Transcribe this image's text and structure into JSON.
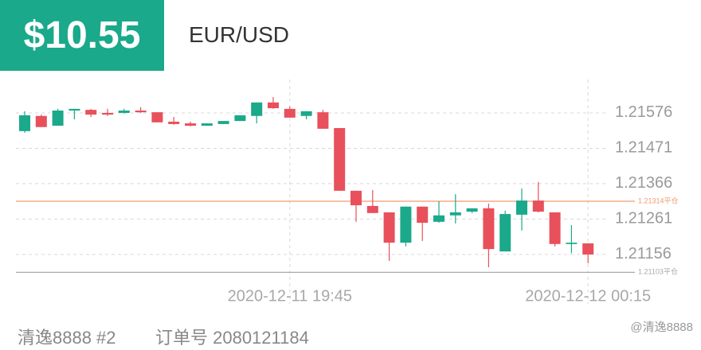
{
  "header": {
    "amount": "$10.55",
    "symbol": "EUR/USD"
  },
  "chart_data": {
    "type": "candlestick",
    "categories": [
      null,
      null,
      null,
      null,
      null,
      null,
      null,
      null,
      null,
      null,
      null,
      null,
      null,
      null,
      null,
      null,
      "2020-12-11 19:45",
      null,
      null,
      null,
      null,
      null,
      null,
      null,
      null,
      null,
      null,
      null,
      null,
      null,
      null,
      null,
      null,
      null,
      "2020-12-12 00:15"
    ],
    "open": [
      1.21522,
      1.21567,
      1.21538,
      1.21583,
      1.21585,
      1.21576,
      1.21576,
      1.21583,
      1.21578,
      1.2155,
      1.21545,
      1.21538,
      1.21543,
      1.21552,
      1.21567,
      1.21607,
      1.21588,
      1.21567,
      1.21578,
      1.21531,
      1.21345,
      1.213,
      1.21281,
      1.21191,
      1.21298,
      1.21253,
      1.21272,
      1.21283,
      1.21293,
      1.21165,
      1.21274,
      1.21316,
      1.21281,
      1.21187,
      1.21189
    ],
    "high": [
      1.21581,
      1.21571,
      1.21588,
      1.21588,
      1.21588,
      1.21588,
      1.21588,
      1.21593,
      1.21578,
      1.21564,
      1.2155,
      1.21545,
      1.21552,
      1.21569,
      1.21607,
      1.21623,
      1.21595,
      1.21581,
      1.21585,
      1.21531,
      1.21345,
      1.21347,
      1.21281,
      1.21298,
      1.21298,
      1.21314,
      1.21335,
      1.21293,
      1.21307,
      1.21286,
      1.21352,
      1.21371,
      1.21281,
      1.21243,
      1.21189
    ],
    "low": [
      1.21517,
      1.21534,
      1.21538,
      1.21557,
      1.21564,
      1.21567,
      1.21574,
      1.21576,
      1.21548,
      1.21541,
      1.21536,
      1.21538,
      1.21543,
      1.21552,
      1.21545,
      1.21588,
      1.21562,
      1.21557,
      1.21529,
      1.21345,
      1.21253,
      1.21279,
      1.21137,
      1.2118,
      1.21196,
      1.2125,
      1.21248,
      1.21279,
      1.21118,
      1.21165,
      1.21227,
      1.21281,
      1.2118,
      1.2116,
      1.2113
    ],
    "close": [
      1.21569,
      1.21534,
      1.21583,
      1.21588,
      1.21571,
      1.21571,
      1.21583,
      1.21578,
      1.21548,
      1.21543,
      1.21538,
      1.21545,
      1.21552,
      1.21569,
      1.21607,
      1.2159,
      1.21562,
      1.21581,
      1.21529,
      1.21345,
      1.21302,
      1.21279,
      1.21191,
      1.21298,
      1.2125,
      1.21272,
      1.21281,
      1.21293,
      1.21172,
      1.21276,
      1.21316,
      1.21283,
      1.21187,
      1.21191,
      1.21156
    ],
    "up_color": "#1aa98a",
    "down_color": "#e8505b",
    "ylim": [
      1.21085,
      1.21675
    ],
    "yticks": [
      1.21576,
      1.21471,
      1.21366,
      1.21261,
      1.21156
    ],
    "grid": true,
    "ref_lines": [
      {
        "value": 1.21314,
        "label": "1.21314平仓",
        "color": "#f09a70"
      },
      {
        "value": 1.21103,
        "label": "1.21103平仓",
        "color": "#aaaaaa"
      }
    ]
  },
  "footer": {
    "account": "清逸8888 #2",
    "order": "订单号 2080121184",
    "watermark": "@清逸8888"
  }
}
